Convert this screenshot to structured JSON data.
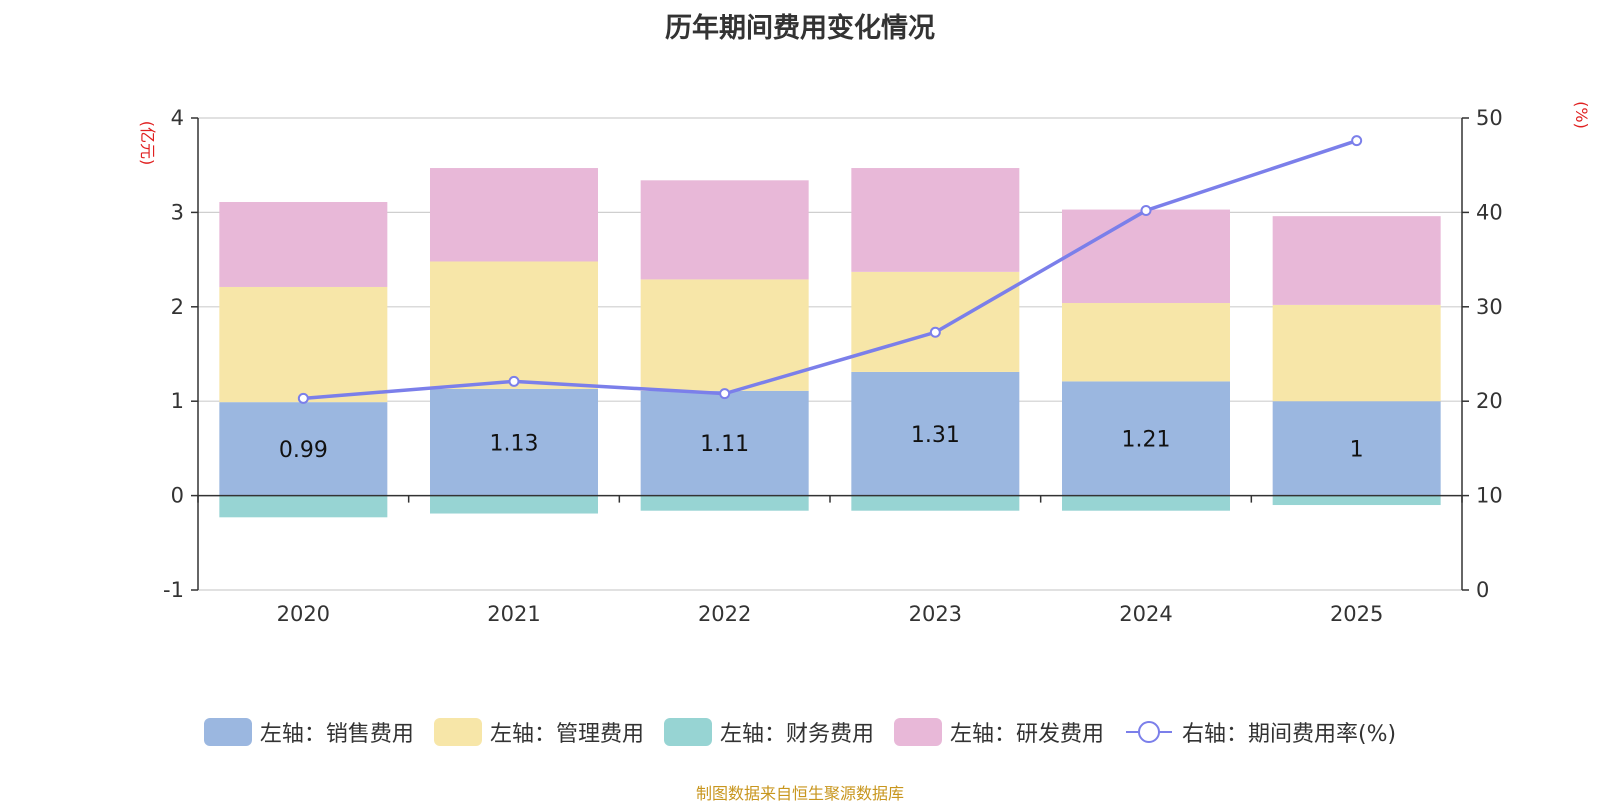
{
  "chart_data": {
    "type": "bar",
    "title": "历年期间费用变化情况",
    "categories": [
      "2020",
      "2021",
      "2022",
      "2023",
      "2024",
      "2025"
    ],
    "series": [
      {
        "name": "左轴：销售费用",
        "axis": "left",
        "color": "#9bb7e0",
        "values": [
          0.99,
          1.13,
          1.11,
          1.31,
          1.21,
          1.0
        ],
        "labels": [
          "0.99",
          "1.13",
          "1.11",
          "1.31",
          "1.21",
          "1"
        ]
      },
      {
        "name": "左轴：管理费用",
        "axis": "left",
        "color": "#f7e6a8",
        "values": [
          1.22,
          1.35,
          1.18,
          1.06,
          0.83,
          1.02
        ]
      },
      {
        "name": "左轴：财务费用",
        "axis": "left",
        "color": "#97d4d3",
        "values": [
          -0.23,
          -0.19,
          -0.16,
          -0.16,
          -0.16,
          -0.1
        ]
      },
      {
        "name": "左轴：研发费用",
        "axis": "left",
        "color": "#e8b8d8",
        "values": [
          0.9,
          0.99,
          1.05,
          1.1,
          0.99,
          0.94
        ]
      },
      {
        "name": "右轴：期间费用率(%)",
        "axis": "right",
        "type": "line",
        "color": "#7b7fea",
        "values": [
          20.3,
          22.1,
          20.8,
          27.3,
          40.2,
          47.6
        ]
      }
    ],
    "y_left": {
      "label": "(亿元)",
      "ylim": [
        -1,
        4
      ],
      "ticks": [
        "-1",
        "0",
        "1",
        "2",
        "3",
        "4"
      ]
    },
    "y_right": {
      "label": "(%)",
      "ylim": [
        0,
        50
      ],
      "ticks": [
        "0",
        "10",
        "20",
        "30",
        "40",
        "50"
      ]
    },
    "grid": true,
    "legend_position": "bottom"
  },
  "source_note": "制图数据来自恒生聚源数据库"
}
